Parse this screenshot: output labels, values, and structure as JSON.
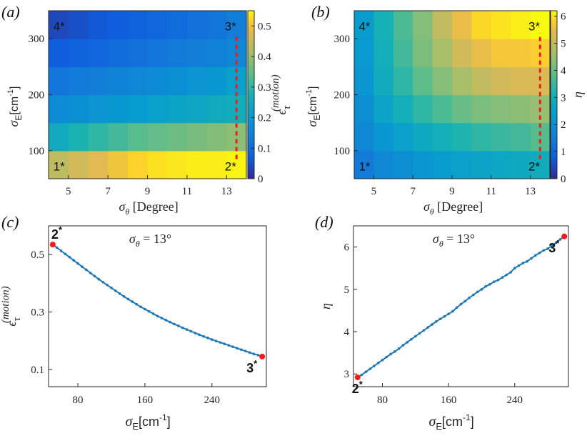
{
  "colors": {
    "line": "#1f77b4",
    "endpoint": "#ff1a1a",
    "dashed": "#e8201c",
    "axis": "#262626"
  },
  "chart_data": [
    {
      "id": "a",
      "panel_label": "(a)",
      "type": "heatmap",
      "x_centers": [
        4.5,
        5.5,
        6.5,
        7.5,
        8.5,
        9.5,
        10.5,
        11.5,
        12.5,
        13.5
      ],
      "y_centers": [
        75,
        125,
        175,
        225,
        275,
        325
      ],
      "xlim": [
        4,
        14
      ],
      "ylim": [
        50,
        350
      ],
      "xticks": [
        "5",
        "7",
        "9",
        "11",
        "13"
      ],
      "yticks": [
        "100",
        "200",
        "300"
      ],
      "xlabel_main": "σ",
      "xlabel_sub": "θ",
      "xlabel_rest": " [Degree]",
      "ylabel_main": "σ",
      "ylabel_sub": "E",
      "ylabel_rest": "[cm",
      "ylabel_sup": "-1",
      "ylabel_end": "]",
      "z": [
        [
          0.44,
          0.46,
          0.48,
          0.5,
          0.52,
          0.53,
          0.535,
          0.54,
          0.54,
          0.545
        ],
        [
          0.25,
          0.28,
          0.3,
          0.32,
          0.34,
          0.35,
          0.36,
          0.37,
          0.38,
          0.39
        ],
        [
          0.17,
          0.18,
          0.19,
          0.2,
          0.21,
          0.22,
          0.23,
          0.24,
          0.25,
          0.26
        ],
        [
          0.12,
          0.13,
          0.14,
          0.15,
          0.16,
          0.17,
          0.18,
          0.19,
          0.2,
          0.22
        ],
        [
          0.07,
          0.08,
          0.09,
          0.1,
          0.11,
          0.12,
          0.13,
          0.14,
          0.15,
          0.16
        ],
        [
          0.04,
          0.05,
          0.06,
          0.07,
          0.08,
          0.09,
          0.1,
          0.11,
          0.12,
          0.14
        ]
      ],
      "colorbar": {
        "min": 0,
        "max": 0.55,
        "ticks": [
          "0",
          "0.1",
          "0.2",
          "0.3",
          "0.4",
          "0.5"
        ],
        "label_main": "ϵ",
        "label_sub": "τ",
        "label_sup": "(motion)"
      },
      "markers": [
        {
          "label": "1*",
          "x": 4.6,
          "y": 75
        },
        {
          "label": "2*",
          "x": 13.2,
          "y": 75
        },
        {
          "label": "3*",
          "x": 13.2,
          "y": 325
        },
        {
          "label": "4*",
          "x": 4.6,
          "y": 325
        }
      ],
      "dashed_line": {
        "x": 13.5,
        "y_from": 85,
        "y_to": 310
      }
    },
    {
      "id": "b",
      "panel_label": "(b)",
      "type": "heatmap",
      "x_centers": [
        4.5,
        5.5,
        6.5,
        7.5,
        8.5,
        9.5,
        10.5,
        11.5,
        12.5,
        13.5
      ],
      "y_centers": [
        75,
        125,
        175,
        225,
        275,
        325
      ],
      "xlim": [
        4,
        14
      ],
      "ylim": [
        50,
        350
      ],
      "xticks": [
        "5",
        "7",
        "9",
        "11",
        "13"
      ],
      "yticks": [
        "100",
        "200",
        "300"
      ],
      "xlabel_main": "σ",
      "xlabel_sub": "θ",
      "xlabel_rest": " [Degree]",
      "ylabel_main": "σ",
      "ylabel_sub": "E",
      "ylabel_rest": "[cm",
      "ylabel_sup": "-1",
      "ylabel_end": "]",
      "z": [
        [
          1.5,
          1.8,
          2.0,
          2.2,
          2.4,
          2.5,
          2.6,
          2.7,
          2.8,
          2.9
        ],
        [
          1.8,
          2.2,
          2.5,
          2.8,
          3.0,
          3.2,
          3.4,
          3.5,
          3.6,
          3.8
        ],
        [
          2.0,
          2.6,
          3.0,
          3.4,
          3.7,
          4.0,
          4.2,
          4.3,
          4.4,
          4.5
        ],
        [
          2.2,
          2.9,
          3.4,
          3.9,
          4.3,
          4.7,
          5.0,
          5.2,
          5.3,
          5.3
        ],
        [
          2.3,
          3.0,
          3.6,
          4.2,
          4.7,
          5.2,
          5.5,
          5.7,
          5.7,
          5.8
        ],
        [
          2.4,
          3.1,
          3.7,
          4.3,
          5.0,
          5.5,
          5.9,
          6.0,
          6.1,
          6.2
        ]
      ],
      "colorbar": {
        "min": 0,
        "max": 6.2,
        "ticks": [
          "0",
          "1",
          "2",
          "3",
          "4",
          "5",
          "6"
        ],
        "label_main": "η",
        "label_sub": "",
        "label_sup": ""
      },
      "markers": [
        {
          "label": "1*",
          "x": 4.6,
          "y": 75
        },
        {
          "label": "2*",
          "x": 13.2,
          "y": 75
        },
        {
          "label": "3*",
          "x": 13.2,
          "y": 325
        },
        {
          "label": "4*",
          "x": 4.6,
          "y": 325
        }
      ],
      "dashed_line": {
        "x": 13.5,
        "y_from": 85,
        "y_to": 310
      }
    },
    {
      "id": "c",
      "panel_label": "(c)",
      "type": "line",
      "annotation": "σθ = 13°",
      "x": [
        50,
        55,
        60,
        65,
        70,
        75,
        80,
        85,
        90,
        95,
        100,
        105,
        110,
        115,
        120,
        125,
        130,
        135,
        140,
        145,
        150,
        155,
        160,
        165,
        170,
        175,
        180,
        185,
        190,
        195,
        200,
        205,
        210,
        215,
        220,
        225,
        230,
        235,
        240,
        245,
        250,
        255,
        260,
        265,
        270,
        275,
        280,
        285,
        290,
        295,
        300
      ],
      "y": [
        0.535,
        0.524,
        0.513,
        0.502,
        0.491,
        0.48,
        0.469,
        0.458,
        0.447,
        0.436,
        0.425,
        0.414,
        0.404,
        0.394,
        0.384,
        0.374,
        0.364,
        0.354,
        0.345,
        0.336,
        0.327,
        0.318,
        0.31,
        0.302,
        0.294,
        0.286,
        0.279,
        0.272,
        0.265,
        0.258,
        0.252,
        0.245,
        0.239,
        0.233,
        0.227,
        0.221,
        0.215,
        0.21,
        0.204,
        0.199,
        0.194,
        0.189,
        0.184,
        0.179,
        0.174,
        0.169,
        0.164,
        0.159,
        0.154,
        0.15,
        0.145
      ],
      "xlim": [
        45,
        305
      ],
      "ylim": [
        0.04,
        0.6
      ],
      "xticks": [
        80,
        160,
        240
      ],
      "yticks": [
        0.1,
        0.3,
        0.5
      ],
      "ytick_labels": [
        "0.1",
        "0.3",
        "0.5"
      ],
      "xlabel_main": "σ",
      "xlabel_sub": "E",
      "xlabel_rest": "[cm",
      "xlabel_sup": "-1",
      "xlabel_end": "]",
      "ylabel_main": "ϵ",
      "ylabel_sub": "τ",
      "ylabel_sup": "(motion)",
      "endpoints": [
        {
          "label": "2*",
          "x": 50,
          "y": 0.535
        },
        {
          "label": "3*",
          "x": 300,
          "y": 0.145
        }
      ]
    },
    {
      "id": "d",
      "panel_label": "(d)",
      "type": "line",
      "annotation": "σθ = 13°",
      "x": [
        50,
        55,
        60,
        65,
        70,
        75,
        80,
        85,
        90,
        95,
        100,
        105,
        110,
        115,
        120,
        125,
        130,
        135,
        140,
        145,
        150,
        155,
        160,
        165,
        170,
        175,
        180,
        185,
        190,
        195,
        200,
        205,
        210,
        215,
        220,
        225,
        230,
        235,
        240,
        245,
        250,
        255,
        260,
        265,
        270,
        275,
        280,
        285,
        290,
        295,
        300
      ],
      "y": [
        2.92,
        2.98,
        3.05,
        3.12,
        3.19,
        3.26,
        3.33,
        3.4,
        3.47,
        3.53,
        3.6,
        3.68,
        3.75,
        3.82,
        3.89,
        3.96,
        4.03,
        4.1,
        4.17,
        4.24,
        4.3,
        4.36,
        4.42,
        4.48,
        4.57,
        4.65,
        4.72,
        4.8,
        4.87,
        4.94,
        5.0,
        5.07,
        5.12,
        5.18,
        5.22,
        5.28,
        5.34,
        5.4,
        5.5,
        5.56,
        5.62,
        5.66,
        5.73,
        5.8,
        5.86,
        5.92,
        5.96,
        6.03,
        6.1,
        6.18,
        6.25
      ],
      "xlim": [
        45,
        305
      ],
      "ylim": [
        2.7,
        6.5
      ],
      "xticks": [
        80,
        160,
        240
      ],
      "yticks": [
        3,
        4,
        5,
        6
      ],
      "ytick_labels": [
        "3",
        "4",
        "5",
        "6"
      ],
      "xlabel_main": "σ",
      "xlabel_sub": "E",
      "xlabel_rest": "[cm",
      "xlabel_sup": "-1",
      "xlabel_end": "]",
      "ylabel_main": "η",
      "endpoints": [
        {
          "label": "2*",
          "x": 50,
          "y": 2.92
        },
        {
          "label": "3*",
          "x": 300,
          "y": 6.25
        }
      ]
    }
  ]
}
